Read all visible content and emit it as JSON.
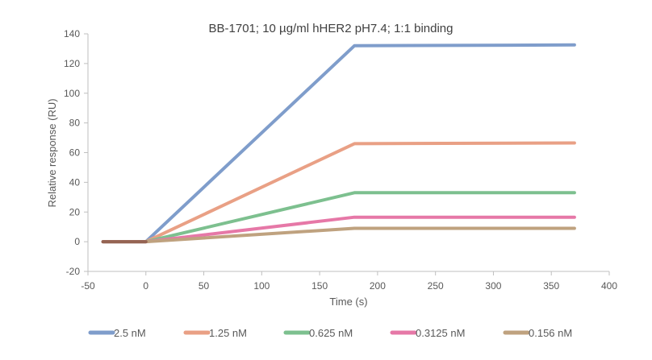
{
  "chart_data": {
    "type": "line",
    "title": "BB-1701; 10 µg/ml hHER2 pH7.4; 1:1 binding",
    "xlabel": "Time (s)",
    "ylabel": "Relative response (RU)",
    "xlim": [
      -50,
      400
    ],
    "ylim": [
      -20,
      140
    ],
    "xticks": [
      -50,
      0,
      50,
      100,
      150,
      200,
      250,
      300,
      350,
      400
    ],
    "yticks": [
      -20,
      0,
      20,
      40,
      60,
      80,
      100,
      120,
      140
    ],
    "grid": false,
    "legend_position": "bottom",
    "series": [
      {
        "name": "2.5 nM",
        "color": "#7F9DCB",
        "x": [
          -37,
          0,
          180,
          370
        ],
        "y": [
          0,
          0,
          132,
          132.5
        ]
      },
      {
        "name": "1.25 nM",
        "color": "#E9A085",
        "x": [
          -37,
          0,
          180,
          370
        ],
        "y": [
          0,
          0,
          66,
          66.5
        ]
      },
      {
        "name": "0.625 nM",
        "color": "#7DC08F",
        "x": [
          -37,
          0,
          180,
          370
        ],
        "y": [
          0,
          0,
          33,
          33
        ]
      },
      {
        "name": "0.3125 nM",
        "color": "#E678A7",
        "x": [
          -37,
          0,
          180,
          370
        ],
        "y": [
          0,
          0,
          16.5,
          16.5
        ]
      },
      {
        "name": "0.156 nM",
        "color": "#BFA27F",
        "x": [
          -37,
          0,
          180,
          370
        ],
        "y": [
          0,
          0,
          9,
          9
        ]
      }
    ]
  }
}
